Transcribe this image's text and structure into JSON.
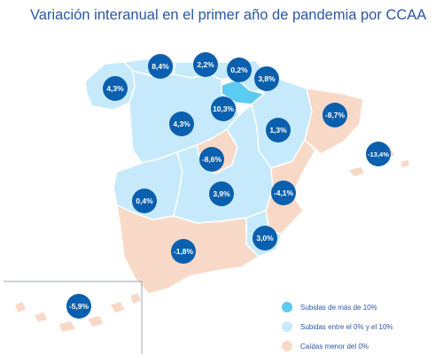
{
  "title": "Variación interanual en el primer año de pandemia por CCAA",
  "colors": {
    "rise_over_10": "#5ccbf2",
    "rise_0_10": "#c6eafb",
    "fall": "#f8d9c8",
    "bubble": "#0a5fae",
    "bubble_text": "#ffffff",
    "title": "#2b56a6"
  },
  "regions": [
    {
      "name": "Galicia",
      "value": "4,3%",
      "category": "rise_0_10"
    },
    {
      "name": "Asturias",
      "value": "8,4%",
      "category": "rise_0_10"
    },
    {
      "name": "Cantabria",
      "value": "2,2%",
      "category": "rise_0_10"
    },
    {
      "name": "País Vasco",
      "value": "0,2%",
      "category": "rise_0_10"
    },
    {
      "name": "Navarra",
      "value": "3,8%",
      "category": "rise_0_10"
    },
    {
      "name": "La Rioja",
      "value": "10,3%",
      "category": "rise_over_10"
    },
    {
      "name": "Castilla y León",
      "value": "4,3%",
      "category": "rise_0_10"
    },
    {
      "name": "Aragón",
      "value": "1,3%",
      "category": "rise_0_10"
    },
    {
      "name": "Cataluña",
      "value": "-8,7%",
      "category": "fall"
    },
    {
      "name": "Baleares",
      "value": "-13,4%",
      "category": "fall"
    },
    {
      "name": "Madrid",
      "value": "-8,6%",
      "category": "fall"
    },
    {
      "name": "Extremadura",
      "value": "0,4%",
      "category": "rise_0_10"
    },
    {
      "name": "Castilla-La Mancha",
      "value": "3,9%",
      "category": "rise_0_10"
    },
    {
      "name": "Comunidad Valenciana",
      "value": "-4,1%",
      "category": "fall"
    },
    {
      "name": "Murcia",
      "value": "3,0%",
      "category": "rise_0_10"
    },
    {
      "name": "Andalucía",
      "value": "-1,8%",
      "category": "fall"
    },
    {
      "name": "Canarias",
      "value": "-5,9%",
      "category": "fall"
    }
  ],
  "legend": [
    {
      "label": "Subidas de más de 10%",
      "category": "rise_over_10"
    },
    {
      "label": "Subidas entre el 0% y el 10%",
      "category": "rise_0_10"
    },
    {
      "label": "Caídas menor del 0%",
      "category": "fall"
    }
  ]
}
